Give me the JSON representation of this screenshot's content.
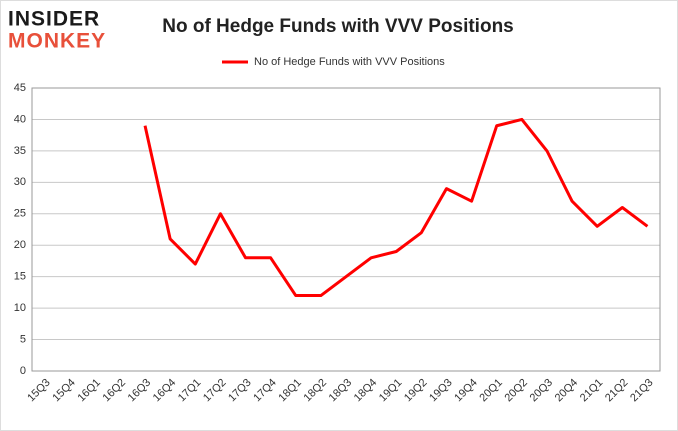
{
  "logo": {
    "line1": "INSIDER",
    "line2": "MONKEY"
  },
  "chart_data": {
    "type": "line",
    "title": "No of Hedge Funds with VVV Positions",
    "categories": [
      "15Q3",
      "15Q4",
      "16Q1",
      "16Q2",
      "16Q3",
      "16Q4",
      "17Q1",
      "17Q2",
      "17Q3",
      "17Q4",
      "18Q1",
      "18Q2",
      "18Q3",
      "18Q4",
      "19Q1",
      "19Q2",
      "19Q3",
      "19Q4",
      "20Q1",
      "20Q2",
      "20Q3",
      "20Q4",
      "21Q1",
      "21Q2",
      "21Q3"
    ],
    "series": [
      {
        "name": "No of Hedge Funds with VVV Positions",
        "color": "#ff0000",
        "values": [
          null,
          null,
          null,
          null,
          39,
          21,
          17,
          25,
          18,
          18,
          12,
          12,
          15,
          18,
          19,
          22,
          29,
          27,
          39,
          40,
          35,
          27,
          23,
          26,
          23
        ]
      }
    ],
    "ylim": [
      0,
      45
    ],
    "yticks": [
      0,
      5,
      10,
      15,
      20,
      25,
      30,
      35,
      40,
      45
    ],
    "grid": true,
    "legend": "top"
  }
}
